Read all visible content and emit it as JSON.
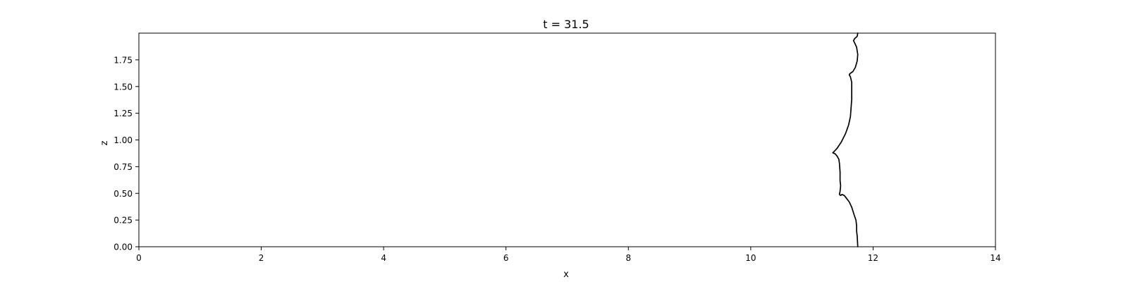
{
  "chart_data": {
    "type": "line",
    "title": "t = 31.5",
    "xlabel": "x",
    "ylabel": "z",
    "xlim": [
      0,
      14
    ],
    "ylim": [
      0,
      2
    ],
    "xticks": [
      0,
      2,
      4,
      6,
      8,
      10,
      12,
      14
    ],
    "xtick_labels": [
      "0",
      "2",
      "4",
      "6",
      "8",
      "10",
      "12",
      "14"
    ],
    "yticks": [
      0,
      0.25,
      0.5,
      0.75,
      1.0,
      1.25,
      1.5,
      1.75
    ],
    "ytick_labels": [
      "0.00",
      "0.25",
      "0.50",
      "0.75",
      "1.00",
      "1.25",
      "1.50",
      "1.75"
    ],
    "grid": false,
    "line_color": "#000000",
    "series": [
      {
        "x": [
          11.75,
          11.74,
          11.73,
          11.73,
          11.72,
          11.69,
          11.65,
          11.61,
          11.57,
          11.53,
          11.49,
          11.47,
          11.45,
          11.46,
          11.47,
          11.46,
          11.46,
          11.45,
          11.44,
          11.41,
          11.38,
          11.34,
          11.36,
          11.41,
          11.48,
          11.55,
          11.6,
          11.63,
          11.64,
          11.65,
          11.65,
          11.65,
          11.63,
          11.61,
          11.62,
          11.67,
          11.71,
          11.74,
          11.75,
          11.73,
          11.68,
          11.7,
          11.74,
          11.75
        ],
        "y": [
          0.0,
          0.1,
          0.15,
          0.2,
          0.25,
          0.3,
          0.37,
          0.42,
          0.45,
          0.48,
          0.49,
          0.48,
          0.49,
          0.52,
          0.57,
          0.62,
          0.7,
          0.78,
          0.82,
          0.85,
          0.87,
          0.88,
          0.89,
          0.92,
          0.98,
          1.06,
          1.14,
          1.22,
          1.3,
          1.38,
          1.46,
          1.54,
          1.59,
          1.61,
          1.62,
          1.64,
          1.68,
          1.74,
          1.8,
          1.87,
          1.93,
          1.95,
          1.97,
          2.0
        ]
      }
    ]
  }
}
